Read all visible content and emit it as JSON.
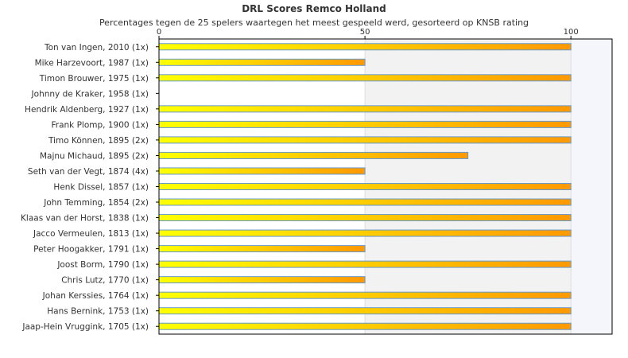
{
  "chart_data": {
    "type": "bar",
    "orientation": "horizontal",
    "title": "DRL Scores Remco Holland",
    "subtitle": "Percentages tegen de 25 spelers waartegen het meest gespeeld werd, gesorteerd op KNSB rating",
    "xlim": [
      0,
      110
    ],
    "xticks": [
      0,
      50,
      100
    ],
    "categories": [
      "Ton van Ingen, 2010 (1x)",
      "Mike Harzevoort, 1987 (1x)",
      "Timon Brouwer, 1975 (1x)",
      "Johnny de Kraker, 1958 (1x)",
      "Hendrik Aldenberg, 1927 (1x)",
      "Frank Plomp, 1900 (1x)",
      "Timo Können, 1895 (2x)",
      "Majnu Michaud, 1895 (2x)",
      "Seth van der Vegt, 1874 (4x)",
      "Henk Dissel, 1857 (1x)",
      "John Temming, 1854 (2x)",
      "Klaas van der Horst, 1838 (1x)",
      "Jacco Vermeulen, 1813 (1x)",
      "Peter Hoogakker, 1791 (1x)",
      "Joost Borm, 1790 (1x)",
      "Chris Lutz, 1770 (1x)",
      "Johan Kerssies, 1764 (1x)",
      "Hans Bernink, 1753 (1x)",
      "Jaap-Hein Vruggink, 1705 (1x)"
    ],
    "values": [
      100,
      50,
      100,
      0,
      100,
      100,
      100,
      75,
      50,
      100,
      100,
      100,
      100,
      50,
      100,
      50,
      100,
      100,
      100
    ],
    "colors": {
      "bar_start": "#ffff00",
      "bar_end": "#ff9900",
      "bar_border": "#6699cc",
      "band_alt": "#f2f2f2",
      "band_last": "#f4f6fb",
      "axis": "#000000"
    }
  }
}
